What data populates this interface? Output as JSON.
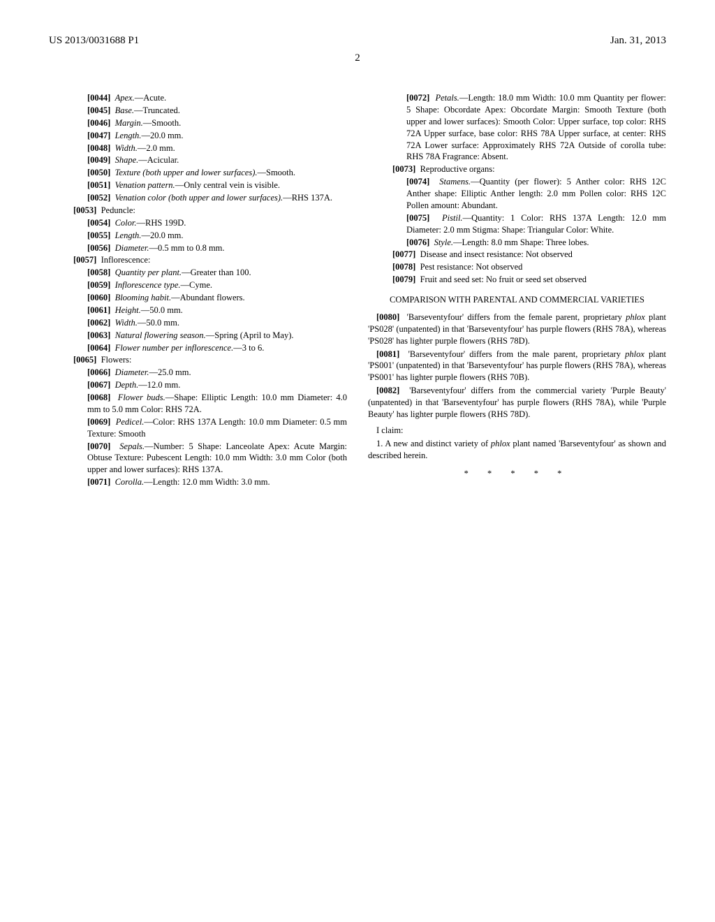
{
  "header": {
    "left": "US 2013/0031688 P1",
    "right": "Jan. 31, 2013"
  },
  "page_number": "2",
  "entries": [
    {
      "type": "item",
      "indent": 2,
      "num": "[0044]",
      "label_italic": "Apex.",
      "text": "—Acute."
    },
    {
      "type": "item",
      "indent": 2,
      "num": "[0045]",
      "label_italic": "Base.",
      "text": "—Truncated."
    },
    {
      "type": "item",
      "indent": 2,
      "num": "[0046]",
      "label_italic": "Margin.",
      "text": "—Smooth."
    },
    {
      "type": "item",
      "indent": 2,
      "num": "[0047]",
      "label_italic": "Length.",
      "text": "—20.0 mm."
    },
    {
      "type": "item",
      "indent": 2,
      "num": "[0048]",
      "label_italic": "Width.",
      "text": "—2.0 mm."
    },
    {
      "type": "item",
      "indent": 2,
      "num": "[0049]",
      "label_italic": "Shape.",
      "text": "—Acicular."
    },
    {
      "type": "item",
      "indent": 2,
      "num": "[0050]",
      "label_italic": "Texture (both upper and lower surfaces).",
      "text": "—Smooth."
    },
    {
      "type": "item",
      "indent": 2,
      "num": "[0051]",
      "label_italic": "Venation pattern.",
      "text": "—Only central vein is visible."
    },
    {
      "type": "item",
      "indent": 2,
      "num": "[0052]",
      "label_italic": "Venation color (both upper and lower surfaces).",
      "text": "—RHS 137A."
    },
    {
      "type": "item",
      "indent": 1,
      "num": "[0053]",
      "label_plain": "Peduncle:",
      "text": ""
    },
    {
      "type": "item",
      "indent": 2,
      "num": "[0054]",
      "label_italic": "Color.",
      "text": "—RHS 199D."
    },
    {
      "type": "item",
      "indent": 2,
      "num": "[0055]",
      "label_italic": "Length.",
      "text": "—20.0 mm."
    },
    {
      "type": "item",
      "indent": 2,
      "num": "[0056]",
      "label_italic": "Diameter.",
      "text": "—0.5 mm to 0.8 mm."
    },
    {
      "type": "item",
      "indent": 1,
      "num": "[0057]",
      "label_plain": "Inflorescence:",
      "text": ""
    },
    {
      "type": "item",
      "indent": 2,
      "num": "[0058]",
      "label_italic": "Quantity per plant.",
      "text": "—Greater than 100."
    },
    {
      "type": "item",
      "indent": 2,
      "num": "[0059]",
      "label_italic": "Inflorescence type.",
      "text": "—Cyme."
    },
    {
      "type": "item",
      "indent": 2,
      "num": "[0060]",
      "label_italic": "Blooming habit.",
      "text": "—Abundant flowers."
    },
    {
      "type": "item",
      "indent": 2,
      "num": "[0061]",
      "label_italic": "Height.",
      "text": "—50.0 mm."
    },
    {
      "type": "item",
      "indent": 2,
      "num": "[0062]",
      "label_italic": "Width.",
      "text": "—50.0 mm."
    },
    {
      "type": "item",
      "indent": 2,
      "num": "[0063]",
      "label_italic": "Natural flowering season.",
      "text": "—Spring (April to May)."
    },
    {
      "type": "item",
      "indent": 2,
      "num": "[0064]",
      "label_italic": "Flower number per inflorescence.",
      "text": "—3 to 6."
    },
    {
      "type": "item",
      "indent": 1,
      "num": "[0065]",
      "label_plain": "Flowers:",
      "text": ""
    },
    {
      "type": "item",
      "indent": 2,
      "num": "[0066]",
      "label_italic": "Diameter.",
      "text": "—25.0 mm."
    },
    {
      "type": "item",
      "indent": 2,
      "num": "[0067]",
      "label_italic": "Depth.",
      "text": "—12.0 mm."
    },
    {
      "type": "item",
      "indent": 2,
      "num": "[0068]",
      "label_italic": "Flower buds.",
      "text": "—Shape: Elliptic Length: 10.0 mm Diameter: 4.0 mm to 5.0 mm Color: RHS 72A."
    },
    {
      "type": "item",
      "indent": 2,
      "num": "[0069]",
      "label_italic": "Pedicel.",
      "text": "—Color: RHS 137A Length: 10.0 mm Diameter: 0.5 mm Texture: Smooth"
    },
    {
      "type": "item",
      "indent": 2,
      "num": "[0070]",
      "label_italic": "Sepals.",
      "text": "—Number: 5 Shape: Lanceolate Apex: Acute Margin: Obtuse Texture: Pubescent Length: 10.0 mm Width: 3.0 mm Color (both upper and lower surfaces): RHS 137A."
    },
    {
      "type": "item",
      "indent": 2,
      "num": "[0071]",
      "label_italic": "Corolla.",
      "text": "—Length: 12.0 mm Width: 3.0 mm."
    },
    {
      "type": "item",
      "indent": 2,
      "num": "[0072]",
      "label_italic": "Petals.",
      "text": "—Length: 18.0 mm Width: 10.0 mm Quantity per flower: 5 Shape: Obcordate Apex: Obcordate Margin: Smooth Texture (both upper and lower surfaces): Smooth Color: Upper surface, top color: RHS 72A Upper surface, base color: RHS 78A Upper surface, at center: RHS 72A Lower surface: Approximately RHS 72A Outside of corolla tube: RHS 78A Fragrance: Absent."
    },
    {
      "type": "item",
      "indent": 1,
      "num": "[0073]",
      "label_plain": "Reproductive organs:",
      "text": ""
    },
    {
      "type": "item",
      "indent": 2,
      "num": "[0074]",
      "label_italic": "Stamens.",
      "text": "—Quantity (per flower): 5 Anther color: RHS 12C Anther shape: Elliptic Anther length: 2.0 mm Pollen color: RHS 12C Pollen amount: Abundant."
    },
    {
      "type": "item",
      "indent": 2,
      "num": "[0075]",
      "label_italic": "Pistil.",
      "text": "—Quantity: 1 Color: RHS 137A Length: 12.0 mm Diameter: 2.0 mm Stigma: Shape: Triangular Color: White."
    },
    {
      "type": "item",
      "indent": 2,
      "num": "[0076]",
      "label_italic": "Style.",
      "text": "—Length: 8.0 mm Shape: Three lobes."
    },
    {
      "type": "item",
      "indent": 1,
      "num": "[0077]",
      "label_plain": "Disease and insect resistance: Not observed",
      "text": ""
    },
    {
      "type": "item",
      "indent": 1,
      "num": "[0078]",
      "label_plain": "Pest resistance: Not observed",
      "text": ""
    },
    {
      "type": "item",
      "indent": 1,
      "num": "[0079]",
      "label_plain": "Fruit and seed set: No fruit or seed set observed",
      "text": ""
    }
  ],
  "comparison": {
    "title": "COMPARISON WITH PARENTAL AND COMMERCIAL VARIETIES",
    "paras": [
      {
        "num": "[0080]",
        "html": "'Barseventyfour' differs from the female parent, proprietary <span class=\"italic\">phlox</span> plant 'PS028' (unpatented) in that 'Barseventyfour' has purple flowers (RHS 78A), whereas 'PS028' has lighter purple flowers (RHS 78D)."
      },
      {
        "num": "[0081]",
        "html": "'Barseventyfour' differs from the male parent, proprietary <span class=\"italic\">phlox</span> plant 'PS001' (unpatented) in that 'Barseventyfour' has purple flowers (RHS 78A), whereas 'PS001' has lighter purple flowers (RHS 70B)."
      },
      {
        "num": "[0082]",
        "html": "'Barseventyfour' differs from the commercial variety 'Purple Beauty' (unpatented) in that 'Barseventyfour' has purple flowers (RHS 78A), while 'Purple Beauty' has lighter purple flowers (RHS 78D)."
      }
    ]
  },
  "claim_intro": "I claim:",
  "claim_1": "1. A new and distinct variety of <span class=\"italic\">phlox</span> plant named 'Barseventyfour' as shown and described herein.",
  "stars": "* * * * *"
}
